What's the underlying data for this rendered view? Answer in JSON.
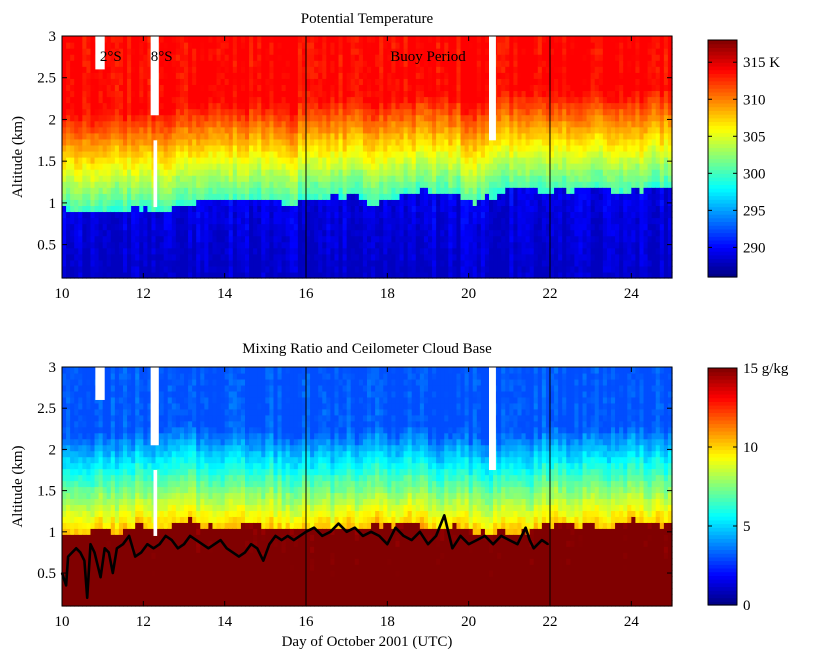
{
  "chart_data": [
    {
      "type": "heatmap",
      "title": "Potential Temperature",
      "xlabel": "",
      "ylabel": "Altitude (km)",
      "xlim": [
        10,
        25
      ],
      "ylim": [
        0.1,
        3
      ],
      "x_ticks": [
        10,
        12,
        14,
        16,
        18,
        20,
        22,
        24
      ],
      "y_ticks": [
        0.5,
        1,
        1.5,
        2,
        2.5,
        3
      ],
      "colorbar": {
        "range": [
          286,
          318
        ],
        "ticks": [
          290,
          295,
          300,
          305,
          310,
          315
        ],
        "unit": "K"
      },
      "colormap": "jet",
      "profile": {
        "surface_value": 288,
        "top_value": 314,
        "inversion_km_start": 0.85,
        "inversion_km_end": 1.2
      },
      "data_gaps": [
        {
          "day_start": 10.82,
          "day_end": 11.05,
          "alt_start": 2.6,
          "alt_end": 3.0
        },
        {
          "day_start": 12.18,
          "day_end": 12.38,
          "alt_start": 2.05,
          "alt_end": 3.0
        },
        {
          "day_start": 12.25,
          "day_end": 12.34,
          "alt_start": 0.95,
          "alt_end": 1.75
        },
        {
          "day_start": 20.5,
          "day_end": 20.67,
          "alt_start": 1.75,
          "alt_end": 3.0
        }
      ],
      "vertical_lines": [
        16,
        22
      ],
      "annotations": [
        {
          "text": "2°S",
          "x": 11.2,
          "y": 2.7
        },
        {
          "text": "8°S",
          "x": 12.45,
          "y": 2.7
        },
        {
          "text": "Buoy Period",
          "x": 19,
          "y": 2.7
        }
      ]
    },
    {
      "type": "heatmap",
      "title": "Mixing Ratio and Ceilometer Cloud Base",
      "xlabel": "Day of October 2001 (UTC)",
      "ylabel": "Altitude (km)",
      "xlim": [
        10,
        25
      ],
      "ylim": [
        0.1,
        3
      ],
      "x_ticks": [
        10,
        12,
        14,
        16,
        18,
        20,
        22,
        24
      ],
      "y_ticks": [
        0.5,
        1,
        1.5,
        2,
        2.5,
        3
      ],
      "colorbar": {
        "range": [
          0,
          15
        ],
        "ticks": [
          0,
          5,
          10,
          15
        ],
        "unit": "g/kg"
      },
      "colormap": "jet",
      "profile": {
        "surface_value": 16,
        "top_value": 3,
        "inversion_km_start": 0.85,
        "inversion_km_end": 1.2
      },
      "data_gaps": [
        {
          "day_start": 10.82,
          "day_end": 11.05,
          "alt_start": 2.6,
          "alt_end": 3.0
        },
        {
          "day_start": 12.18,
          "day_end": 12.38,
          "alt_start": 2.05,
          "alt_end": 3.0
        },
        {
          "day_start": 12.25,
          "day_end": 12.34,
          "alt_start": 0.95,
          "alt_end": 1.75
        },
        {
          "day_start": 20.5,
          "day_end": 20.67,
          "alt_start": 1.75,
          "alt_end": 3.0
        }
      ],
      "vertical_lines": [
        16,
        22
      ],
      "series": [
        {
          "type": "line",
          "name": "Ceilometer Cloud Base",
          "x": [
            10.0,
            10.1,
            10.15,
            10.25,
            10.35,
            10.45,
            10.55,
            10.62,
            10.7,
            10.8,
            10.95,
            11.05,
            11.15,
            11.25,
            11.35,
            11.5,
            11.65,
            11.8,
            11.95,
            12.1,
            12.25,
            12.4,
            12.55,
            12.7,
            12.85,
            13.0,
            13.15,
            13.3,
            13.45,
            13.6,
            13.75,
            13.9,
            14.05,
            14.2,
            14.35,
            14.5,
            14.65,
            14.8,
            14.95,
            15.1,
            15.25,
            15.4,
            15.55,
            15.7,
            15.85,
            16.0,
            16.2,
            16.4,
            16.6,
            16.8,
            17.0,
            17.2,
            17.4,
            17.6,
            17.8,
            18.0,
            18.2,
            18.4,
            18.6,
            18.8,
            19.0,
            19.2,
            19.4,
            19.5,
            19.6,
            19.8,
            20.0,
            20.2,
            20.4,
            20.6,
            20.8,
            21.0,
            21.2,
            21.4,
            21.5,
            21.6,
            21.8,
            21.95
          ],
          "values": [
            0.5,
            0.35,
            0.7,
            0.75,
            0.8,
            0.75,
            0.65,
            0.2,
            0.85,
            0.75,
            0.45,
            0.8,
            0.75,
            0.5,
            0.8,
            0.85,
            0.95,
            0.7,
            0.75,
            0.85,
            0.8,
            0.85,
            0.95,
            0.9,
            0.8,
            0.85,
            0.95,
            0.9,
            0.85,
            0.8,
            0.85,
            0.9,
            0.8,
            0.75,
            0.7,
            0.75,
            0.85,
            0.8,
            0.65,
            0.85,
            0.95,
            0.9,
            0.95,
            0.9,
            0.95,
            1.0,
            1.05,
            0.95,
            1.0,
            1.1,
            1.0,
            1.05,
            0.95,
            1.0,
            0.95,
            0.85,
            1.05,
            0.95,
            0.9,
            1.0,
            0.85,
            0.95,
            1.2,
            1.0,
            0.8,
            0.95,
            0.85,
            0.9,
            0.95,
            0.85,
            0.95,
            0.9,
            0.85,
            1.05,
            0.9,
            0.8,
            0.9,
            0.85
          ]
        }
      ]
    }
  ]
}
